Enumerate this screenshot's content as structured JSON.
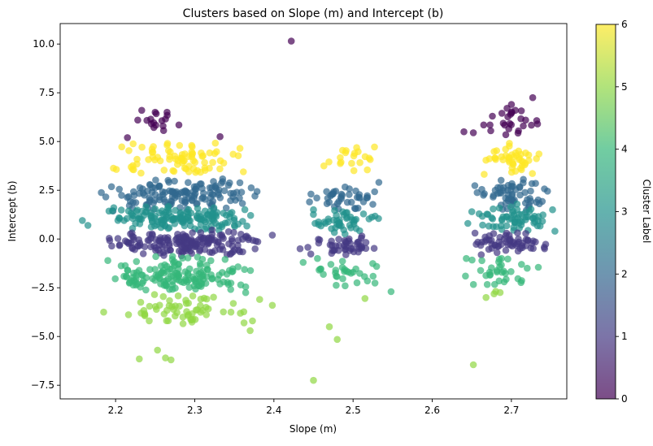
{
  "chart_data": {
    "type": "scatter",
    "title": "Clusters based on Slope (m) and Intercept (b)",
    "xlabel": "Slope (m)",
    "ylabel": "Intercept (b)",
    "xlim": [
      2.13,
      2.77
    ],
    "ylim": [
      -8.2,
      11.05
    ],
    "x_ticks": [
      2.2,
      2.3,
      2.4,
      2.5,
      2.6,
      2.7
    ],
    "x_tick_labels": [
      "2.2",
      "2.3",
      "2.4",
      "2.5",
      "2.6",
      "2.7"
    ],
    "y_ticks": [
      -7.5,
      -5.0,
      -2.5,
      0.0,
      2.5,
      5.0,
      7.5,
      10.0
    ],
    "y_tick_labels": [
      "−7.5",
      "−5.0",
      "−2.5",
      "0.0",
      "2.5",
      "5.0",
      "7.5",
      "10.0"
    ],
    "colormap": "viridis",
    "marker_alpha": 0.7,
    "colorbar": {
      "label": "Cluster Label",
      "range": [
        0,
        6
      ],
      "ticks": [
        0,
        1,
        2,
        3,
        4,
        5,
        6
      ],
      "tick_labels": [
        "0",
        "1",
        "2",
        "3",
        "4",
        "5",
        "6"
      ]
    },
    "grid": false,
    "point_groups": [
      {
        "cluster": 0,
        "x_range": [
          2.22,
          2.28
        ],
        "y_range": [
          5.3,
          6.6
        ],
        "count": 10
      },
      {
        "cluster": 0,
        "x_range": [
          2.66,
          2.74
        ],
        "y_range": [
          5.3,
          6.9
        ],
        "count": 15
      },
      {
        "cluster": 6,
        "x_range": [
          2.19,
          2.38
        ],
        "y_range": [
          3.2,
          5.0
        ],
        "count": 80
      },
      {
        "cluster": 6,
        "x_range": [
          2.46,
          2.53
        ],
        "y_range": [
          3.2,
          4.8
        ],
        "count": 20
      },
      {
        "cluster": 6,
        "x_range": [
          2.66,
          2.74
        ],
        "y_range": [
          3.2,
          5.0
        ],
        "count": 45
      },
      {
        "cluster": 2,
        "x_range": [
          2.18,
          2.39
        ],
        "y_range": [
          1.4,
          3.2
        ],
        "count": 140
      },
      {
        "cluster": 2,
        "x_range": [
          2.44,
          2.54
        ],
        "y_range": [
          1.3,
          3.0
        ],
        "count": 40
      },
      {
        "cluster": 2,
        "x_range": [
          2.65,
          2.75
        ],
        "y_range": [
          1.4,
          3.2
        ],
        "count": 60
      },
      {
        "cluster": 3,
        "x_range": [
          2.18,
          2.39
        ],
        "y_range": [
          0.3,
          1.8
        ],
        "count": 150
      },
      {
        "cluster": 3,
        "x_range": [
          2.44,
          2.54
        ],
        "y_range": [
          0.2,
          1.6
        ],
        "count": 45
      },
      {
        "cluster": 3,
        "x_range": [
          2.65,
          2.75
        ],
        "y_range": [
          0.3,
          1.8
        ],
        "count": 60
      },
      {
        "cluster": 1,
        "x_range": [
          2.18,
          2.39
        ],
        "y_range": [
          -0.9,
          0.5
        ],
        "count": 170
      },
      {
        "cluster": 1,
        "x_range": [
          2.44,
          2.54
        ],
        "y_range": [
          -0.9,
          0.3
        ],
        "count": 45
      },
      {
        "cluster": 1,
        "x_range": [
          2.65,
          2.75
        ],
        "y_range": [
          -0.9,
          0.4
        ],
        "count": 60
      },
      {
        "cluster": 4,
        "x_range": [
          2.18,
          2.39
        ],
        "y_range": [
          -2.8,
          -0.8
        ],
        "count": 150
      },
      {
        "cluster": 4,
        "x_range": [
          2.44,
          2.54
        ],
        "y_range": [
          -2.5,
          -0.9
        ],
        "count": 25
      },
      {
        "cluster": 4,
        "x_range": [
          2.64,
          2.73
        ],
        "y_range": [
          -2.6,
          -0.8
        ],
        "count": 30
      },
      {
        "cluster": 5,
        "x_range": [
          2.19,
          2.38
        ],
        "y_range": [
          -4.6,
          -2.7
        ],
        "count": 60
      },
      {
        "cluster": 5,
        "x_range": [
          2.67,
          2.7
        ],
        "y_range": [
          -3.0,
          -2.6
        ],
        "count": 3
      }
    ],
    "points": [
      {
        "x": 2.422,
        "y": 10.15,
        "cluster": 0
      },
      {
        "x": 2.233,
        "y": 6.6,
        "cluster": 0
      },
      {
        "x": 2.25,
        "y": 6.5,
        "cluster": 0
      },
      {
        "x": 2.265,
        "y": 6.5,
        "cluster": 0
      },
      {
        "x": 2.263,
        "y": 6.15,
        "cluster": 0
      },
      {
        "x": 2.228,
        "y": 6.1,
        "cluster": 0
      },
      {
        "x": 2.26,
        "y": 5.8,
        "cluster": 0
      },
      {
        "x": 2.28,
        "y": 5.85,
        "cluster": 0
      },
      {
        "x": 2.215,
        "y": 5.2,
        "cluster": 0
      },
      {
        "x": 2.332,
        "y": 5.25,
        "cluster": 0
      },
      {
        "x": 2.727,
        "y": 7.25,
        "cluster": 0
      },
      {
        "x": 2.7,
        "y": 6.9,
        "cluster": 0
      },
      {
        "x": 2.705,
        "y": 6.6,
        "cluster": 0
      },
      {
        "x": 2.688,
        "y": 6.45,
        "cluster": 0
      },
      {
        "x": 2.676,
        "y": 6.3,
        "cluster": 0
      },
      {
        "x": 2.718,
        "y": 6.1,
        "cluster": 0
      },
      {
        "x": 2.733,
        "y": 5.9,
        "cluster": 0
      },
      {
        "x": 2.673,
        "y": 5.85,
        "cluster": 0
      },
      {
        "x": 2.715,
        "y": 5.8,
        "cluster": 0
      },
      {
        "x": 2.665,
        "y": 5.85,
        "cluster": 0
      },
      {
        "x": 2.64,
        "y": 5.5,
        "cluster": 0
      },
      {
        "x": 2.652,
        "y": 5.45,
        "cluster": 0
      },
      {
        "x": 2.674,
        "y": 5.55,
        "cluster": 0
      },
      {
        "x": 2.693,
        "y": 5.35,
        "cluster": 0
      },
      {
        "x": 2.709,
        "y": 5.55,
        "cluster": 0
      },
      {
        "x": 2.158,
        "y": 0.95,
        "cluster": 3
      },
      {
        "x": 2.165,
        "y": 0.7,
        "cluster": 3
      },
      {
        "x": 2.433,
        "y": -0.5,
        "cluster": 1
      },
      {
        "x": 2.437,
        "y": -1.2,
        "cluster": 4
      },
      {
        "x": 2.445,
        "y": 1.9,
        "cluster": 2
      },
      {
        "x": 2.45,
        "y": 1.5,
        "cluster": 3
      },
      {
        "x": 2.452,
        "y": 0.8,
        "cluster": 3
      },
      {
        "x": 2.455,
        "y": -1.0,
        "cluster": 4
      },
      {
        "x": 2.472,
        "y": -1.3,
        "cluster": 4
      },
      {
        "x": 2.478,
        "y": -1.6,
        "cluster": 4
      },
      {
        "x": 2.49,
        "y": -2.4,
        "cluster": 4
      },
      {
        "x": 2.5,
        "y": -1.7,
        "cluster": 4
      },
      {
        "x": 2.548,
        "y": -2.7,
        "cluster": 4
      },
      {
        "x": 2.515,
        "y": -3.05,
        "cluster": 5
      },
      {
        "x": 2.47,
        "y": -4.5,
        "cluster": 5
      },
      {
        "x": 2.48,
        "y": -5.15,
        "cluster": 5
      },
      {
        "x": 2.45,
        "y": -7.25,
        "cluster": 5
      },
      {
        "x": 2.398,
        "y": 0.2,
        "cluster": 1
      },
      {
        "x": 2.398,
        "y": -3.4,
        "cluster": 5
      },
      {
        "x": 2.37,
        "y": -4.7,
        "cluster": 5
      },
      {
        "x": 2.382,
        "y": -3.1,
        "cluster": 5
      },
      {
        "x": 2.373,
        "y": -4.2,
        "cluster": 5
      },
      {
        "x": 2.185,
        "y": -3.75,
        "cluster": 5
      },
      {
        "x": 2.23,
        "y": -6.15,
        "cluster": 5
      },
      {
        "x": 2.253,
        "y": -5.7,
        "cluster": 5
      },
      {
        "x": 2.263,
        "y": -6.1,
        "cluster": 5
      },
      {
        "x": 2.27,
        "y": -6.2,
        "cluster": 5
      },
      {
        "x": 2.652,
        "y": -6.45,
        "cluster": 5
      },
      {
        "x": 2.643,
        "y": -1.0,
        "cluster": 4
      },
      {
        "x": 2.642,
        "y": -1.9,
        "cluster": 4
      },
      {
        "x": 2.668,
        "y": -3.0,
        "cluster": 5
      },
      {
        "x": 2.72,
        "y": -1.5,
        "cluster": 4
      },
      {
        "x": 2.734,
        "y": -1.45,
        "cluster": 4
      },
      {
        "x": 2.742,
        "y": -0.5,
        "cluster": 1
      },
      {
        "x": 2.752,
        "y": 1.5,
        "cluster": 3
      },
      {
        "x": 2.755,
        "y": 0.4,
        "cluster": 3
      },
      {
        "x": 2.65,
        "y": 1.4,
        "cluster": 3
      },
      {
        "x": 2.645,
        "y": 0.8,
        "cluster": 3
      }
    ]
  }
}
